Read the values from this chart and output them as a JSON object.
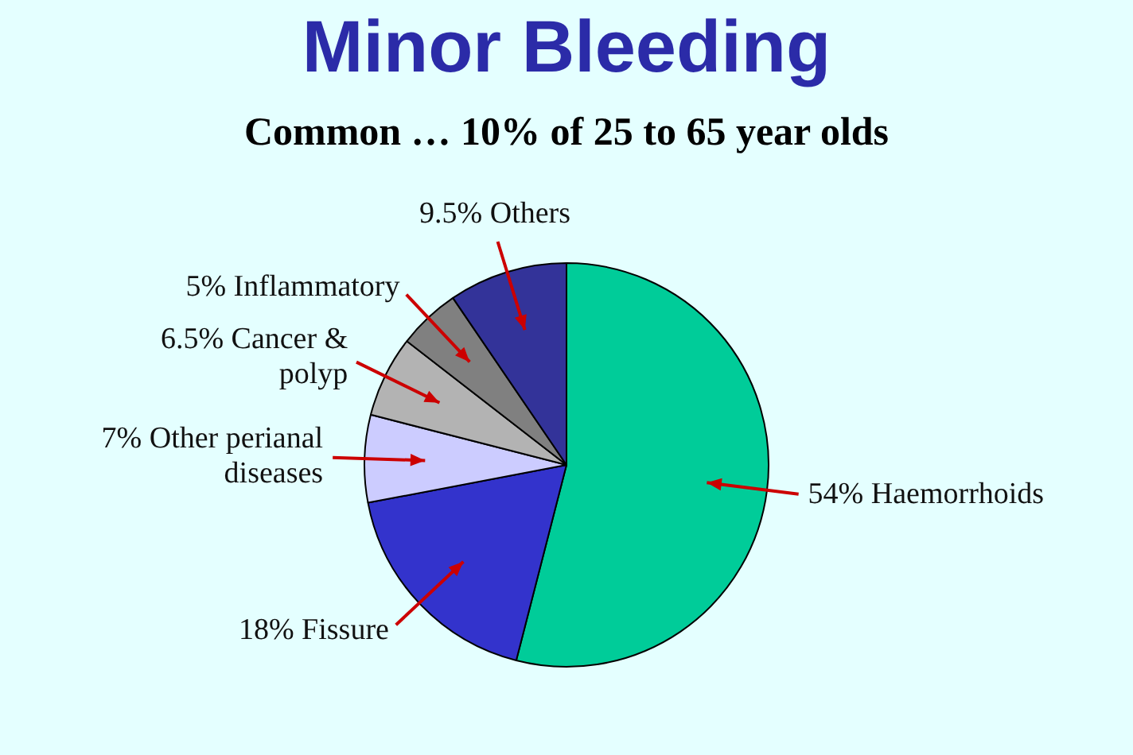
{
  "chart_data": {
    "type": "pie",
    "title": "Minor Bleeding",
    "subtitle": "Common … 10% of 25 to 65 year olds",
    "categories": [
      "Haemorrhoids",
      "Fissure",
      "Other perianal diseases",
      "Cancer & polyp",
      "Inflammatory",
      "Others"
    ],
    "values": [
      54,
      18,
      7,
      6.5,
      5,
      9.5
    ],
    "value_labels": [
      "54%",
      "18%",
      "7%",
      "6.5%",
      "5%",
      "9.5%"
    ],
    "colors": [
      "#00cc99",
      "#3333cc",
      "#ccccff",
      "#b3b3b3",
      "#808080",
      "#333399"
    ],
    "legend": false
  }
}
